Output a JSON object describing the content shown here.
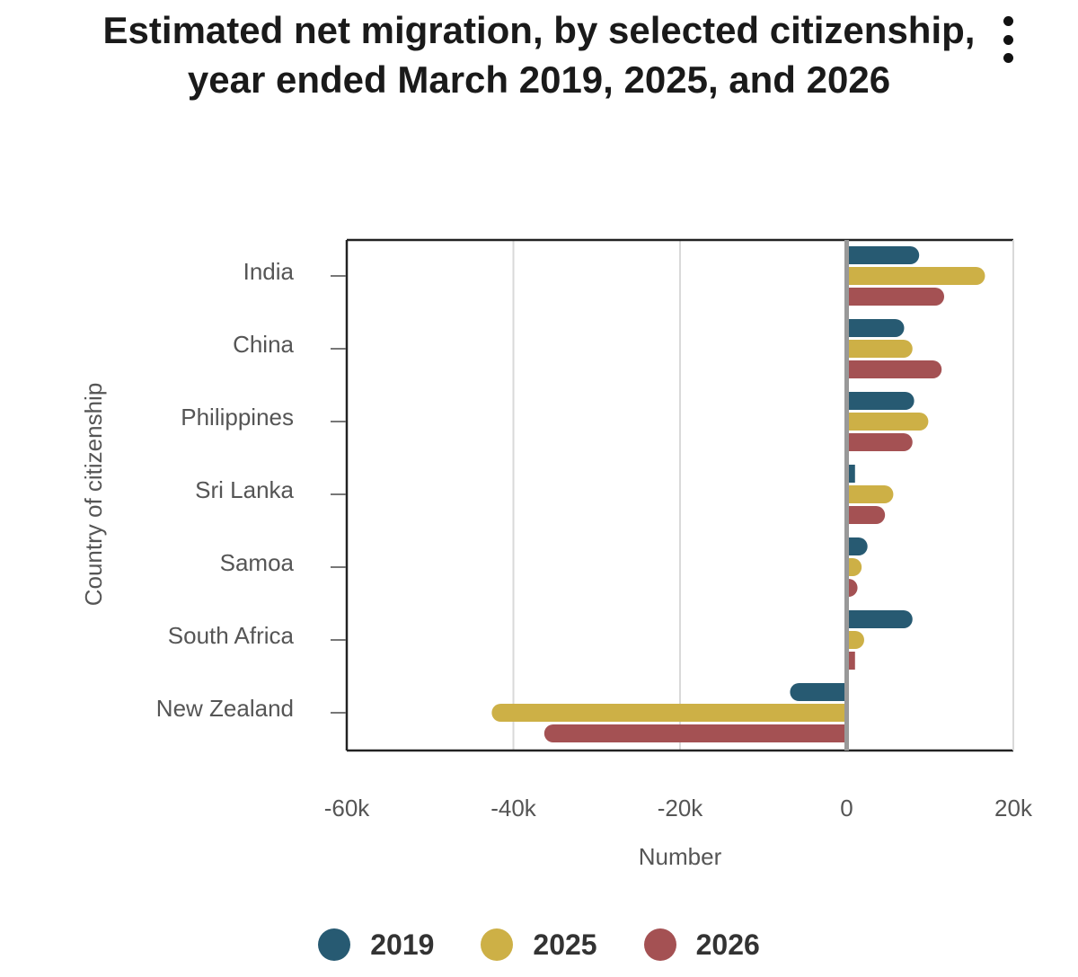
{
  "chart_data": {
    "type": "bar",
    "orientation": "horizontal",
    "title": "Estimated net migration, by selected citizenship, year ended March 2019, 2025, and 2026",
    "xlabel": "Number",
    "ylabel": "Country of citizenship",
    "categories": [
      "India",
      "China",
      "Philippines",
      "Sri Lanka",
      "Samoa",
      "South Africa",
      "New Zealand"
    ],
    "series": [
      {
        "name": "2019",
        "color": "#275a72",
        "values": [
          8700,
          6900,
          8100,
          1000,
          2500,
          7900,
          -6800
        ]
      },
      {
        "name": "2025",
        "color": "#cdb046",
        "values": [
          16600,
          7900,
          9800,
          5600,
          1800,
          2100,
          -42600
        ]
      },
      {
        "name": "2026",
        "color": "#a45153",
        "values": [
          11700,
          11400,
          7900,
          4600,
          1300,
          1000,
          -36300
        ]
      }
    ],
    "xlim": [
      -60000,
      20000
    ],
    "x_ticks": [
      -60000,
      -40000,
      -20000,
      0,
      20000
    ],
    "x_tick_labels": [
      "-60k",
      "-40k",
      "-20k",
      "0",
      "20k"
    ],
    "grid": "vertical",
    "legend_position": "bottom"
  },
  "menu": {
    "icon": "kebab-menu-icon"
  }
}
